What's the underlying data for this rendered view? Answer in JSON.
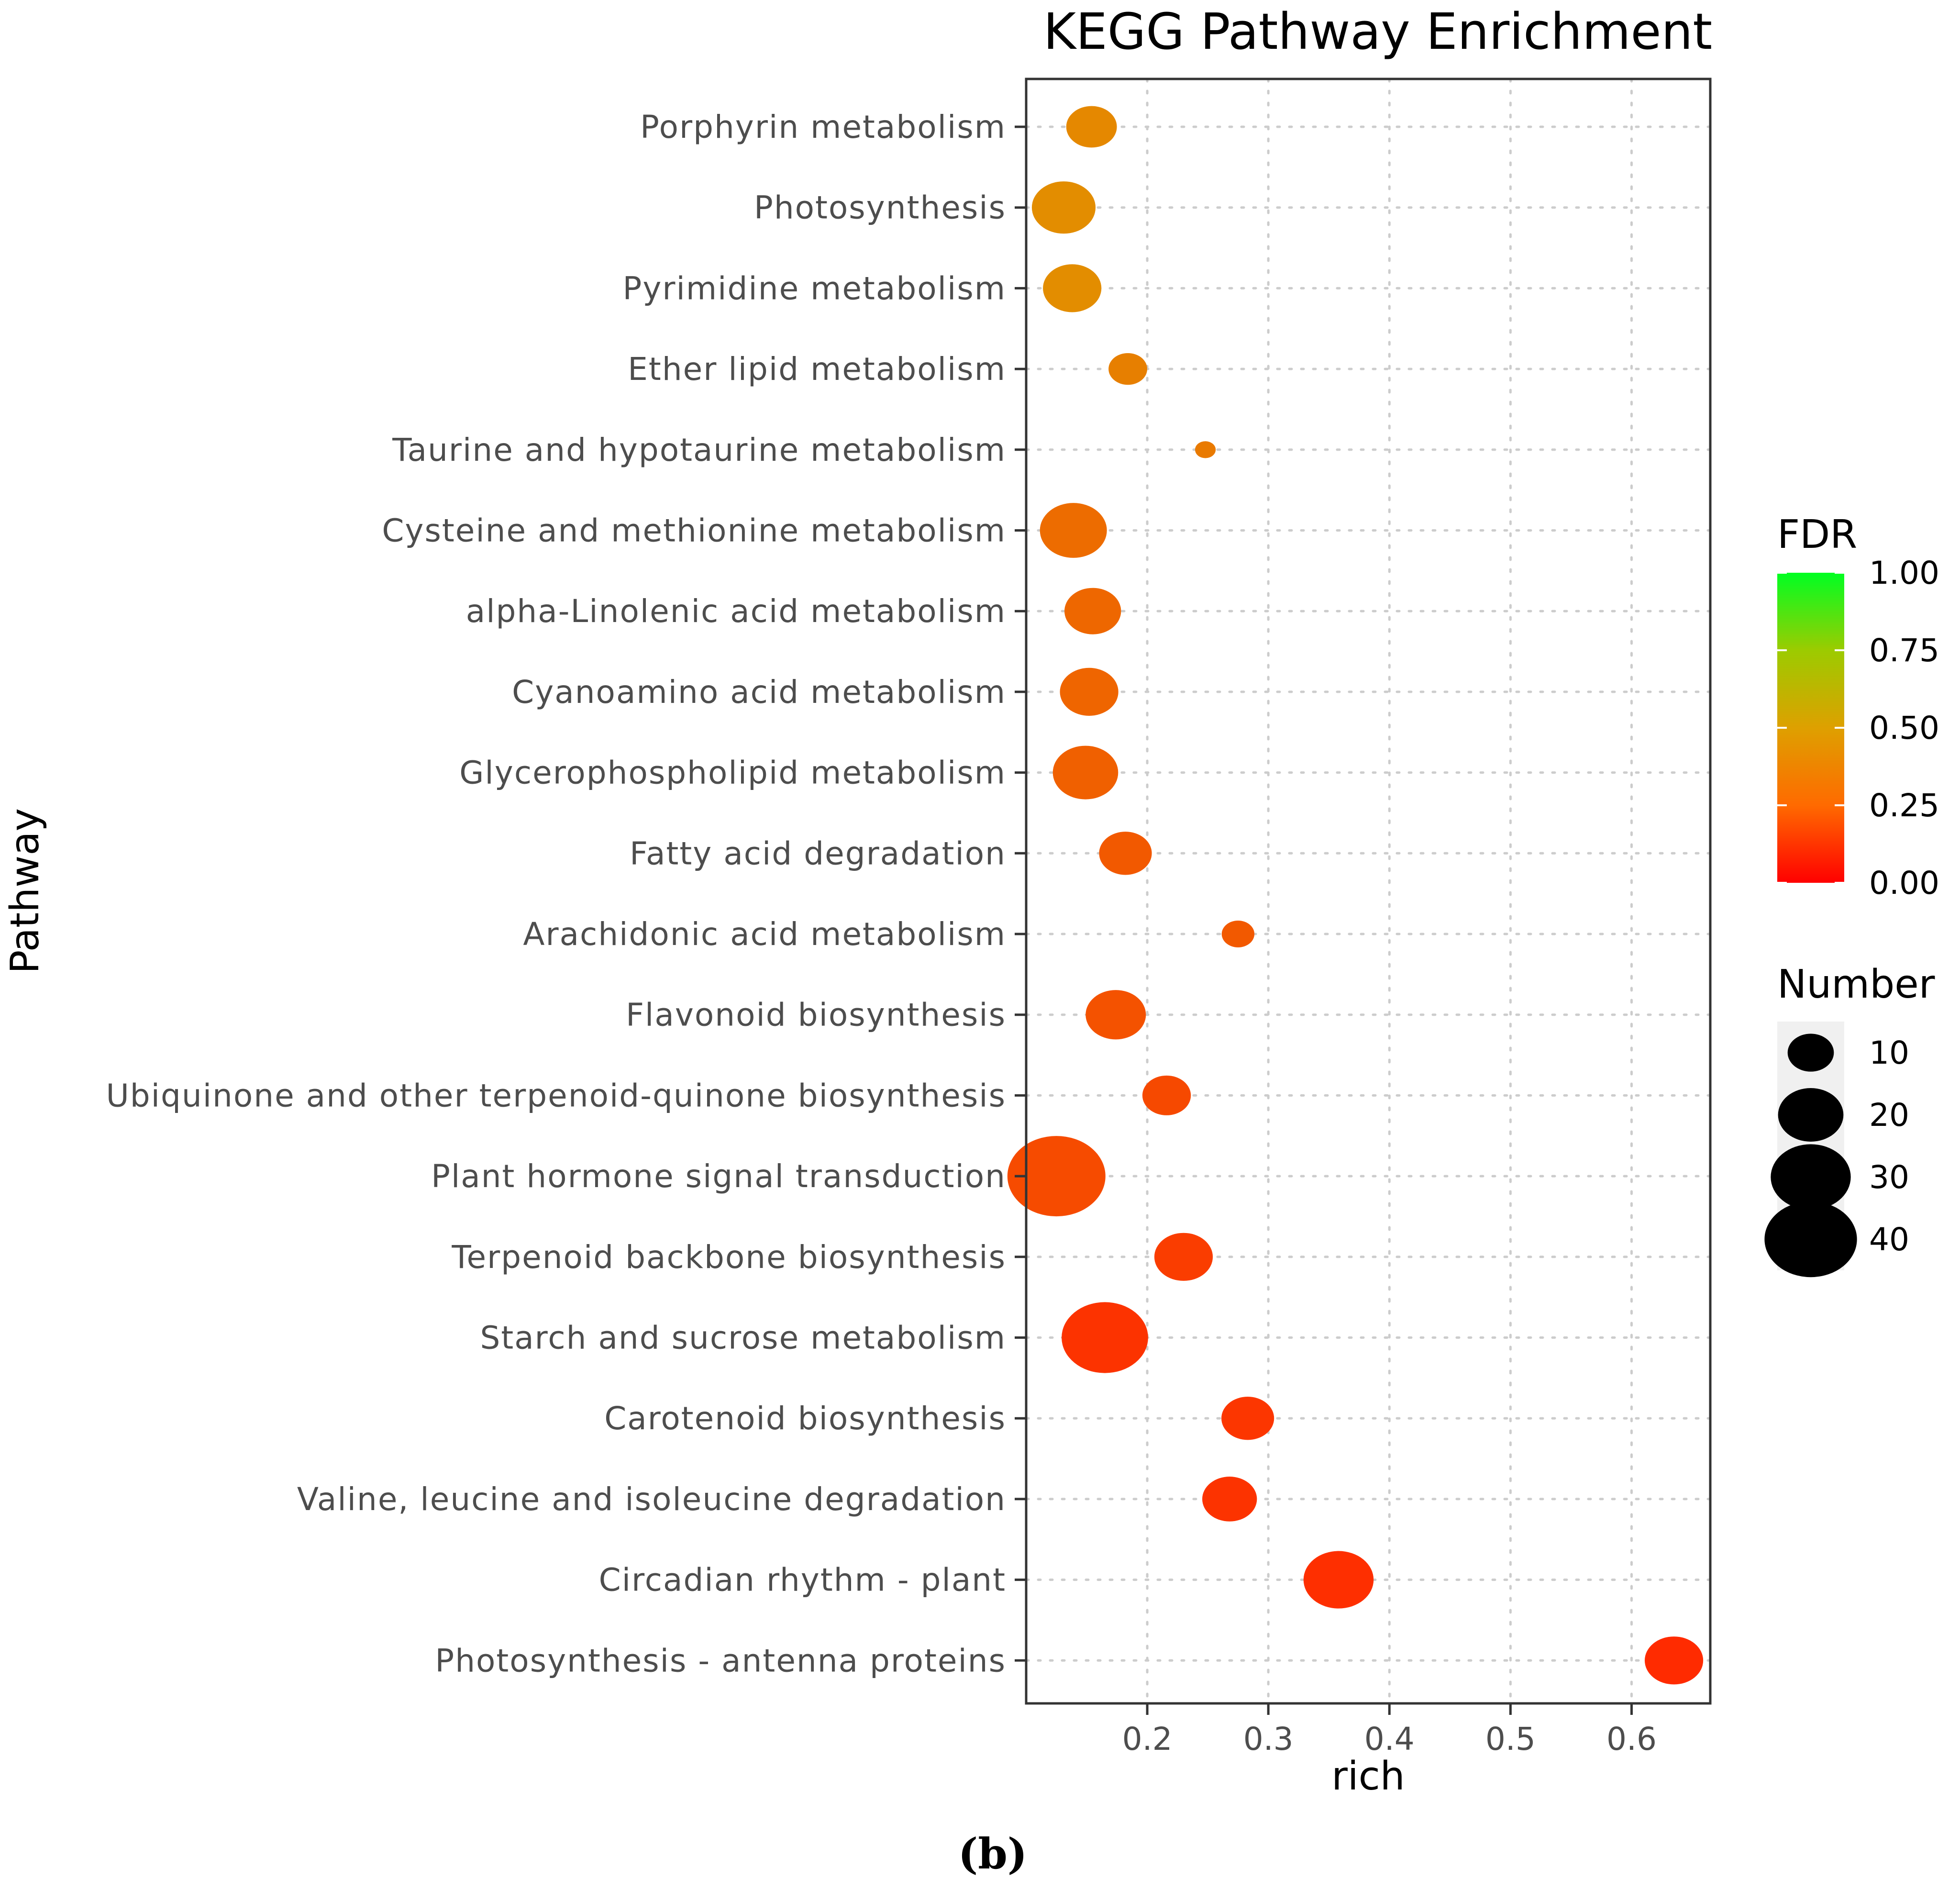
{
  "chart_data": {
    "type": "scatter",
    "title": "KEGG Pathway Enrichment",
    "xlabel": "rich",
    "ylabel": "Pathway",
    "xlim": [
      0.1,
      0.665
    ],
    "xticks": [
      "0.2",
      "0.3",
      "0.4",
      "0.5",
      "0.6"
    ],
    "xtick_values": [
      0.2,
      0.3,
      0.4,
      0.5,
      0.6
    ],
    "grid": true,
    "panel_label": "(b)",
    "points": [
      {
        "pathway": "Porphyrin metabolism",
        "rich": 0.154,
        "fdr": 0.4,
        "number": 12
      },
      {
        "pathway": "Photosynthesis",
        "rich": 0.131,
        "fdr": 0.42,
        "number": 19
      },
      {
        "pathway": "Pyrimidine metabolism",
        "rich": 0.138,
        "fdr": 0.42,
        "number": 16
      },
      {
        "pathway": "Ether lipid metabolism",
        "rich": 0.184,
        "fdr": 0.36,
        "number": 7
      },
      {
        "pathway": "Taurine and hypotaurine metabolism",
        "rich": 0.248,
        "fdr": 0.34,
        "number": 2
      },
      {
        "pathway": "Cysteine and methionine metabolism",
        "rich": 0.139,
        "fdr": 0.28,
        "number": 21
      },
      {
        "pathway": "alpha-Linolenic acid metabolism",
        "rich": 0.155,
        "fdr": 0.26,
        "number": 15
      },
      {
        "pathway": "Cyanoamino acid metabolism",
        "rich": 0.152,
        "fdr": 0.25,
        "number": 16
      },
      {
        "pathway": "Glycerophospholipid metabolism",
        "rich": 0.149,
        "fdr": 0.23,
        "number": 20
      },
      {
        "pathway": "Fatty acid degradation",
        "rich": 0.182,
        "fdr": 0.2,
        "number": 13
      },
      {
        "pathway": "Arachidonic acid metabolism",
        "rich": 0.275,
        "fdr": 0.2,
        "number": 5
      },
      {
        "pathway": "Flavonoid biosynthesis",
        "rich": 0.174,
        "fdr": 0.17,
        "number": 17
      },
      {
        "pathway": "Ubiquinone and other terpenoid-quinone biosynthesis",
        "rich": 0.216,
        "fdr": 0.13,
        "number": 11
      },
      {
        "pathway": "Plant hormone signal transduction",
        "rich": 0.125,
        "fdr": 0.14,
        "number": 45
      },
      {
        "pathway": "Terpenoid backbone biosynthesis",
        "rich": 0.23,
        "fdr": 0.08,
        "number": 16
      },
      {
        "pathway": "Starch and sucrose metabolism",
        "rich": 0.165,
        "fdr": 0.04,
        "number": 35
      },
      {
        "pathway": "Carotenoid biosynthesis",
        "rich": 0.283,
        "fdr": 0.05,
        "number": 13
      },
      {
        "pathway": "Valine, leucine and isoleucine degradation",
        "rich": 0.268,
        "fdr": 0.04,
        "number": 14
      },
      {
        "pathway": "Circadian rhythm - plant",
        "rich": 0.358,
        "fdr": 0.02,
        "number": 23
      },
      {
        "pathway": "Photosynthesis - antenna proteins",
        "rich": 0.635,
        "fdr": 0.005,
        "number": 16
      }
    ],
    "legend": {
      "fdr_title": "FDR",
      "fdr_ticks": [
        "1.00",
        "0.75",
        "0.50",
        "0.25",
        "0.00"
      ],
      "fdr_tick_values": [
        1.0,
        0.75,
        0.5,
        0.25,
        0.0
      ],
      "fdr_colors": [
        "#00ff22",
        "#dea000",
        "#ff2a00"
      ],
      "number_title": "Number",
      "number_ticks": [
        "10",
        "20",
        "30",
        "40"
      ],
      "number_tick_values": [
        10,
        20,
        30,
        40
      ]
    }
  }
}
